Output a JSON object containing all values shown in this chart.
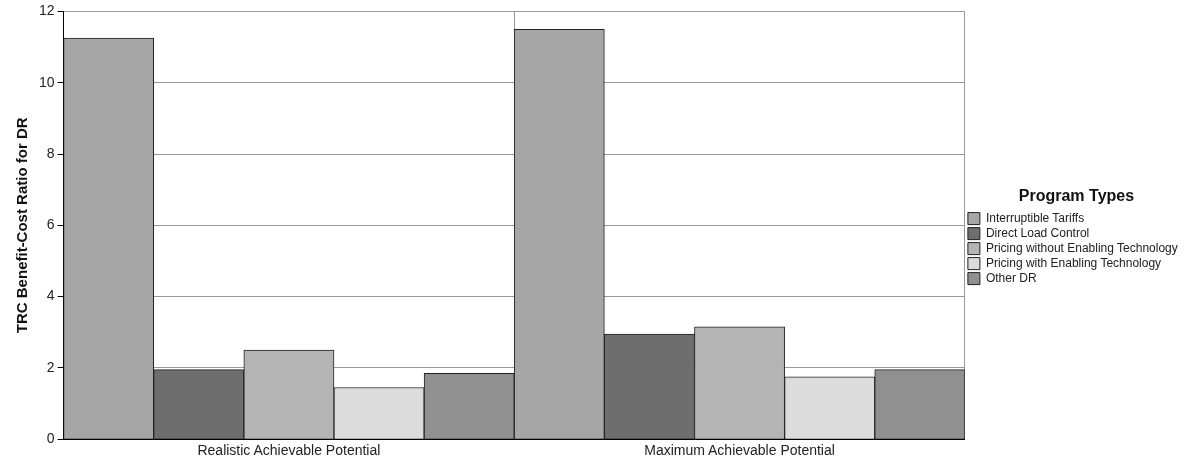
{
  "chart_data": {
    "type": "bar",
    "ylabel": "TRC Benefit-Cost Ratio for DR",
    "legend_title": "Program Types",
    "categories": [
      "Realistic Achievable Potential",
      "Maximum Achievable Potential"
    ],
    "series": [
      {
        "name": "Interruptible Tariffs",
        "color": "#a6a6a6",
        "values": [
          11.25,
          11.5
        ]
      },
      {
        "name": "Direct Load Control",
        "color": "#6e6e6e",
        "values": [
          1.95,
          2.95
        ]
      },
      {
        "name": "Pricing without Enabling Technology",
        "color": "#b4b4b4",
        "values": [
          2.5,
          3.15
        ]
      },
      {
        "name": "Pricing with Enabling Technology",
        "color": "#dcdcdc",
        "values": [
          1.45,
          1.75
        ]
      },
      {
        "name": "Other DR",
        "color": "#909090",
        "values": [
          1.85,
          1.95
        ]
      }
    ],
    "ylim": [
      0,
      12
    ],
    "yticks": [
      0,
      2,
      4,
      6,
      8,
      10,
      12
    ],
    "grid": true,
    "legend": "right"
  }
}
